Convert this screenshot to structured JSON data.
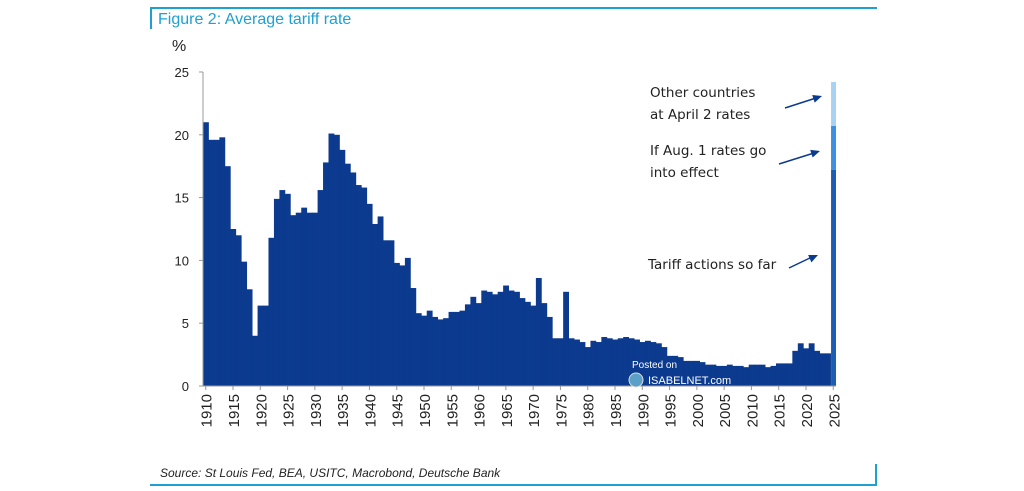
{
  "title": "Figure 2: Average tariff rate",
  "source": "Source: St Louis Fed, BEA, USITC, Macrobond, Deutsche Bank",
  "watermark": "Posted on ISABELNET.com",
  "chart_data": {
    "type": "bar",
    "title": "Figure 2: Average tariff rate",
    "ylabel": "%",
    "xlabel": "",
    "ylim": [
      0,
      25
    ],
    "yticks": [
      0,
      5,
      10,
      15,
      20,
      25
    ],
    "xticks": [
      1910,
      1915,
      1920,
      1925,
      1930,
      1935,
      1940,
      1945,
      1950,
      1955,
      1960,
      1965,
      1970,
      1975,
      1980,
      1985,
      1990,
      1995,
      2000,
      2005,
      2010,
      2015,
      2020,
      2025
    ],
    "grid": false,
    "colors": {
      "history": "#0b3a8e",
      "tariff_actions": "#1c5fb2",
      "aug1": "#3d90e0",
      "april2": "#a8d2f2"
    },
    "years": [
      1910,
      1911,
      1912,
      1913,
      1914,
      1915,
      1916,
      1917,
      1918,
      1919,
      1920,
      1921,
      1922,
      1923,
      1924,
      1925,
      1926,
      1927,
      1928,
      1929,
      1930,
      1931,
      1932,
      1933,
      1934,
      1935,
      1936,
      1937,
      1938,
      1939,
      1940,
      1941,
      1942,
      1943,
      1944,
      1945,
      1946,
      1947,
      1948,
      1949,
      1950,
      1951,
      1952,
      1953,
      1954,
      1955,
      1956,
      1957,
      1958,
      1959,
      1960,
      1961,
      1962,
      1963,
      1964,
      1965,
      1966,
      1967,
      1968,
      1969,
      1970,
      1971,
      1972,
      1973,
      1974,
      1975,
      1976,
      1977,
      1978,
      1979,
      1980,
      1981,
      1982,
      1983,
      1984,
      1985,
      1986,
      1987,
      1988,
      1989,
      1990,
      1991,
      1992,
      1993,
      1994,
      1995,
      1996,
      1997,
      1998,
      1999,
      2000,
      2001,
      2002,
      2003,
      2004,
      2005,
      2006,
      2007,
      2008,
      2009,
      2010,
      2011,
      2012,
      2013,
      2014,
      2015,
      2016,
      2017,
      2018,
      2019,
      2020,
      2021,
      2022,
      2023,
      2024
    ],
    "values": [
      21,
      19.6,
      19.6,
      19.8,
      17.5,
      12.5,
      12,
      9.9,
      7.7,
      4,
      6.4,
      6.4,
      11.8,
      14.9,
      15.6,
      15.3,
      13.6,
      13.8,
      14.2,
      13.8,
      13.8,
      15.6,
      17.8,
      20.1,
      20,
      18.8,
      17.7,
      17,
      16,
      15.8,
      14.5,
      12.9,
      13.5,
      11.6,
      11.6,
      9.8,
      9.6,
      10.2,
      7.8,
      5.8,
      5.6,
      6,
      5.5,
      5.3,
      5.4,
      5.9,
      5.9,
      6,
      6.5,
      7.1,
      6.6,
      7.6,
      7.5,
      7.3,
      7.5,
      8,
      7.6,
      7.5,
      7,
      6.7,
      6.4,
      8.6,
      6.6,
      5.5,
      3.8,
      3.8,
      7.5,
      3.8,
      3.7,
      3.5,
      3.1,
      3.6,
      3.5,
      3.9,
      3.8,
      3.7,
      3.8,
      3.9,
      3.8,
      3.7,
      3.5,
      3.6,
      3.5,
      3.4,
      3.1,
      2.4,
      2.4,
      2.3,
      2,
      2,
      2,
      1.9,
      1.7,
      1.7,
      1.6,
      1.6,
      1.7,
      1.6,
      1.6,
      1.5,
      1.7,
      1.7,
      1.7,
      1.5,
      1.6,
      1.8,
      1.8,
      1.8,
      2.8,
      3.4,
      3.0,
      3.4,
      2.8,
      2.6,
      2.6
    ],
    "stack_2025": [
      {
        "name": "Tariff actions so far",
        "value": 17.2
      },
      {
        "name": "If Aug. 1 rates go into effect",
        "value": 20.7
      },
      {
        "name": "Other countries at April 2 rates",
        "value": 24.2
      }
    ],
    "annotations": [
      [
        "Other countries",
        "at April 2 rates"
      ],
      [
        "If Aug. 1 rates go",
        "into effect"
      ],
      [
        "Tariff actions so far"
      ]
    ]
  }
}
